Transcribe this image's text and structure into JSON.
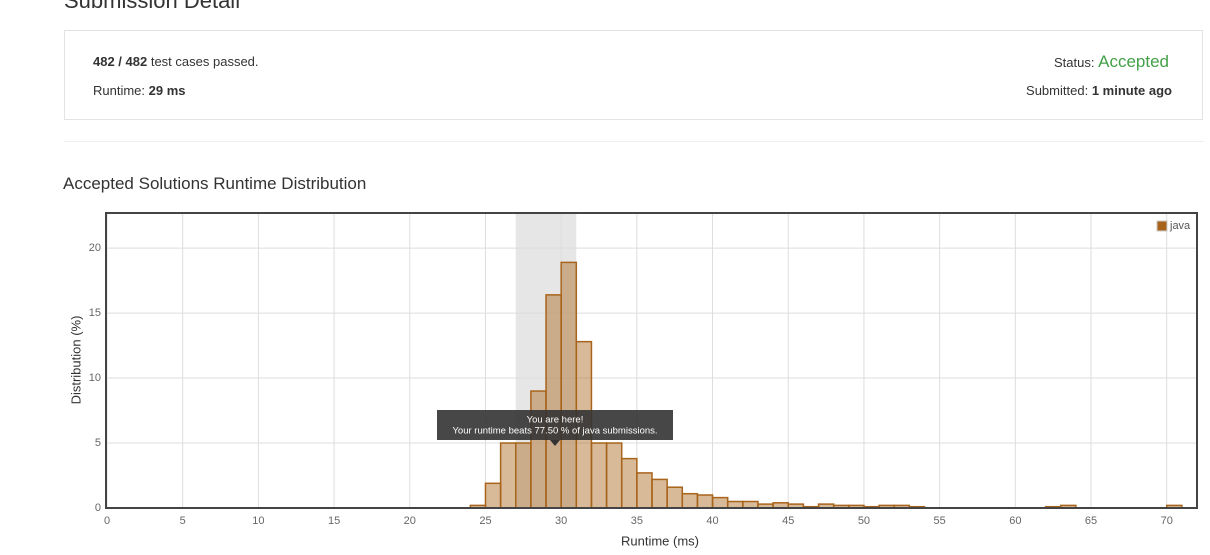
{
  "header": {
    "title": "Submission Detail"
  },
  "summary": {
    "cases": "482 / 482",
    "cases_text": "test cases passed.",
    "runtime_label": "Runtime:",
    "runtime": "29 ms",
    "status_label": "Status:",
    "status": "Accepted",
    "submitted_label": "Submitted:",
    "submitted": "1 minute ago"
  },
  "chart_data": {
    "type": "histogram",
    "title": "Accepted Solutions Runtime Distribution",
    "x_label": "Runtime (ms)",
    "y_label": "Distribution (%)",
    "bins": [
      24,
      25,
      26,
      27,
      28,
      29,
      30,
      31,
      32,
      33,
      34,
      35,
      36,
      37,
      38,
      39,
      40,
      41,
      42,
      43,
      44,
      45,
      46,
      47,
      48,
      49,
      50,
      51,
      52,
      53,
      54,
      55,
      56,
      57,
      58,
      59,
      60,
      61,
      62,
      63,
      64,
      65,
      66,
      67,
      68,
      69,
      70,
      71
    ],
    "series": [
      {
        "name": "java",
        "color": "#a8641b",
        "values": [
          0.2,
          1.9,
          5.0,
          5.0,
          9.0,
          16.4,
          18.9,
          12.8,
          5.0,
          5.0,
          3.8,
          2.7,
          2.2,
          1.6,
          1.1,
          1.0,
          0.8,
          0.5,
          0.5,
          0.3,
          0.4,
          0.3,
          0.1,
          0.3,
          0.2,
          0.2,
          0.1,
          0.2,
          0.2,
          0.1,
          0,
          0,
          0,
          0,
          0,
          0,
          0,
          0,
          0.1,
          0.2,
          0,
          0,
          0,
          0,
          0,
          0,
          0.2
        ]
      }
    ],
    "highlight_range": [
      27,
      31
    ],
    "tooltip": [
      "You are here!",
      "Your runtime beats 77.50 % of java submissions."
    ],
    "xlim": [
      0,
      72
    ],
    "ylim": [
      0,
      22.7
    ],
    "xticks": [
      0,
      5,
      10,
      15,
      20,
      25,
      30,
      35,
      40,
      45,
      50,
      55,
      60,
      65,
      70
    ],
    "yticks": [
      0,
      5,
      10,
      15,
      20
    ],
    "grid": true,
    "legend": "upper right"
  }
}
